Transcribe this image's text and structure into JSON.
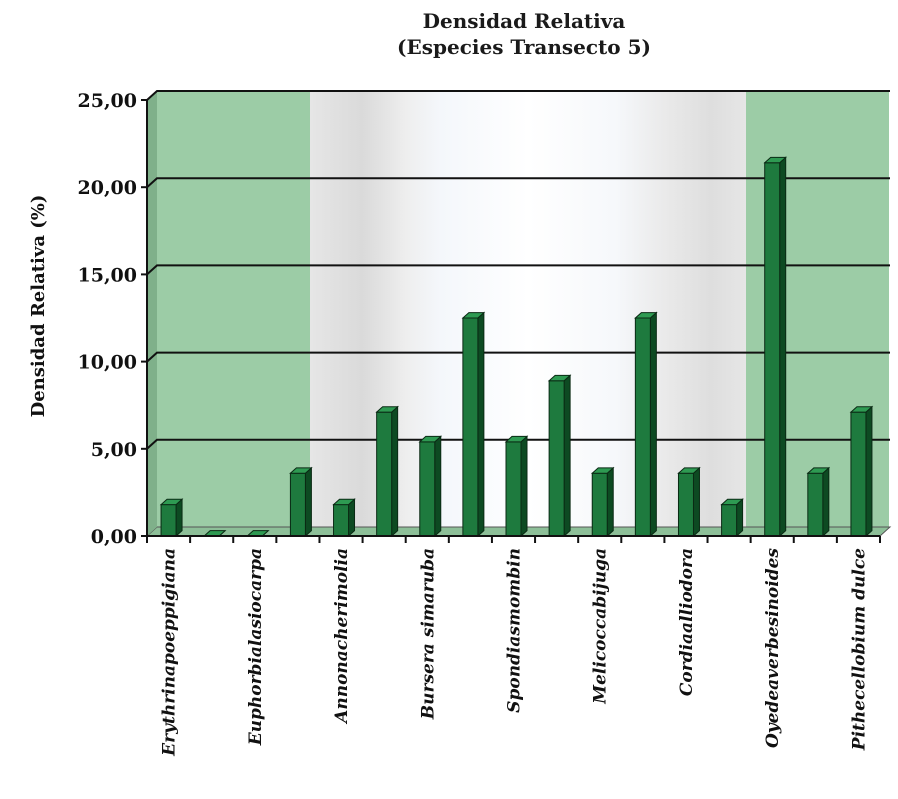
{
  "chart_data": {
    "type": "bar",
    "title": "Densidad Relativa",
    "subtitle": "(Especies Transecto 5)",
    "xlabel": "",
    "ylabel": "Densidad Relativa (%)",
    "ylim": [
      0,
      25
    ],
    "yticks": [
      "0,00",
      "5,00",
      "10,00",
      "15,00",
      "20,00",
      "25,00"
    ],
    "grid": true,
    "legend": "none",
    "bar_color": "#1e7a3e",
    "categories": [
      "Erythrinapoeppigiana",
      "",
      "Euphorbialasiocarpa",
      "",
      "Annonacherimolia",
      "",
      "Bursera simaruba",
      "",
      "Spondiasmombin",
      "",
      "Melicoccabijuga",
      "",
      "Cordiaalliodora",
      "",
      "Oyedeaverbesinoides",
      "",
      "Pithecellobium dulce"
    ],
    "values": [
      1.8,
      0,
      0,
      3.6,
      1.8,
      7.1,
      5.4,
      12.5,
      5.4,
      8.9,
      3.6,
      12.5,
      3.6,
      1.8,
      21.4,
      3.6,
      7.1
    ]
  }
}
